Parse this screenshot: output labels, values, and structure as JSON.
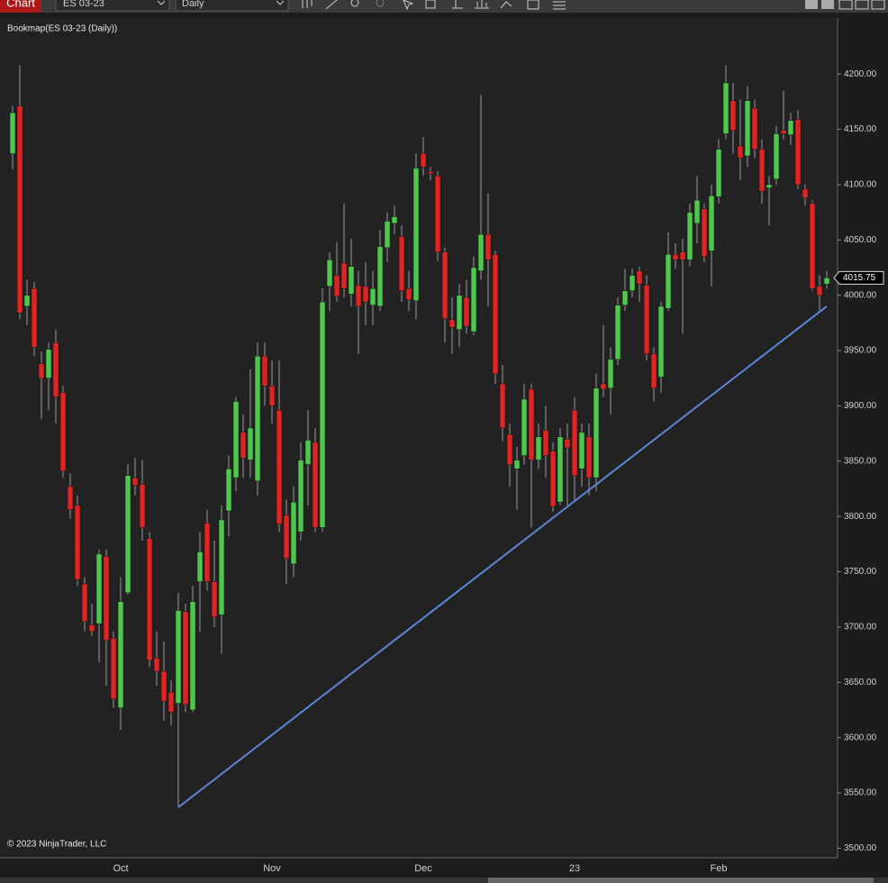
{
  "toolbar": {
    "tab": "Chart",
    "instrument": "ES 03-23",
    "interval": "Daily"
  },
  "chart_data": {
    "type": "candlestick",
    "title": "Bookmap(ES 03-23 (Daily))",
    "copyright": "© 2023 NinjaTrader, LLC",
    "up_color": "#4cc84c",
    "down_color": "#e02424",
    "categories": [
      null,
      null,
      null,
      null,
      null,
      null,
      null,
      null,
      null,
      null,
      null,
      null,
      null,
      null,
      null,
      "Oct",
      null,
      null,
      null,
      null,
      null,
      null,
      null,
      null,
      null,
      null,
      null,
      null,
      null,
      null,
      null,
      null,
      null,
      null,
      null,
      null,
      "Nov",
      null,
      null,
      null,
      null,
      null,
      null,
      null,
      null,
      null,
      null,
      null,
      null,
      null,
      null,
      null,
      null,
      null,
      null,
      null,
      null,
      "Dec",
      null,
      null,
      null,
      null,
      null,
      null,
      null,
      null,
      null,
      null,
      null,
      null,
      null,
      null,
      null,
      null,
      null,
      null,
      null,
      null,
      "23",
      null,
      null,
      null,
      null,
      null,
      null,
      null,
      null,
      null,
      null,
      null,
      null,
      null,
      null,
      null,
      null,
      null,
      null,
      null,
      "Feb",
      null,
      null,
      null,
      null,
      null,
      null,
      null,
      null,
      null,
      null,
      null,
      null,
      null,
      null,
      null
    ],
    "open": [
      4128,
      4171,
      3990,
      4006,
      3938,
      3925,
      3957,
      3912,
      3827,
      3810,
      3739,
      3702,
      3703,
      3764,
      3690,
      3627,
      3731,
      3835,
      3829,
      3780,
      3672,
      3660,
      3641,
      3631,
      3714,
      3625,
      3741,
      3794,
      3741,
      3711,
      3805,
      3835,
      3876,
      3851,
      3832,
      3945,
      3918,
      3896,
      3801,
      3757,
      3786,
      3847,
      3867,
      3790,
      4008,
      4018,
      4029,
      4001,
      4009,
      4008,
      3991,
      3990,
      4043,
      4065,
      4053,
      4006,
      3995,
      4128,
      4112,
      4108,
      4039,
      3978,
      3969,
      3998,
      3967,
      4022,
      4055,
      4037,
      3920,
      3874,
      3843,
      3855,
      3915,
      3851,
      3878,
      3859,
      3813,
      3870,
      3896,
      3843,
      3872,
      3835,
      3920,
      3916,
      3942,
      3991,
      4004,
      4022,
      4009,
      3947,
      3926,
      3988,
      4037,
      4039,
      4032,
      4065,
      4078,
      4040,
      4089,
      4146,
      4176,
      4135,
      4126,
      4169,
      4132,
      4097,
      4105,
      4149,
      4145,
      4159,
      4096,
      4083,
      4008,
      4010
    ],
    "high": [
      4171,
      4208,
      4014,
      4012,
      3949,
      3957,
      3969,
      3918,
      3839,
      3819,
      3745,
      3721,
      3770,
      3770,
      3696,
      3745,
      3847,
      3853,
      3851,
      3786,
      3696,
      3687,
      3652,
      3731,
      3721,
      3737,
      3786,
      3806,
      3778,
      3810,
      3855,
      3908,
      3892,
      3933,
      3957,
      3957,
      3941,
      3941,
      3815,
      3827,
      3867,
      3896,
      3880,
      4006,
      4039,
      4048,
      4083,
      4051,
      4022,
      4030,
      4022,
      4059,
      4075,
      4081,
      4063,
      4022,
      4128,
      4143,
      4116,
      4112,
      4043,
      3998,
      4010,
      4014,
      4035,
      4181,
      4092,
      4040,
      3937,
      3884,
      3863,
      3920,
      3920,
      3884,
      3900,
      3867,
      3880,
      3884,
      3908,
      3884,
      3884,
      3929,
      3973,
      3953,
      3998,
      4024,
      4024,
      4026,
      4018,
      3953,
      3994,
      4057,
      4047,
      4051,
      4083,
      4108,
      4083,
      4100,
      4141,
      4208,
      4192,
      4177,
      4189,
      4177,
      4141,
      4108,
      4153,
      4185,
      4165,
      4167,
      4100,
      4086,
      4018,
      4022
    ],
    "low": [
      4114,
      3978,
      3973,
      3945,
      3888,
      3896,
      3884,
      3835,
      3798,
      3737,
      3696,
      3692,
      3668,
      3647,
      3627,
      3607,
      3729,
      3819,
      3778,
      3664,
      3647,
      3615,
      3611,
      3537,
      3623,
      3623,
      3696,
      3733,
      3700,
      3676,
      3782,
      3823,
      3835,
      3835,
      3819,
      3900,
      3884,
      3786,
      3739,
      3745,
      3778,
      3810,
      3786,
      3786,
      3986,
      3994,
      3998,
      3990,
      3947,
      3973,
      3973,
      3986,
      4030,
      4055,
      3994,
      3986,
      3978,
      4108,
      4104,
      4031,
      3957,
      3947,
      3953,
      3965,
      3964,
      4014,
      3990,
      3920,
      3868,
      3827,
      3806,
      3847,
      3790,
      3843,
      3835,
      3804,
      3810,
      3810,
      3815,
      3827,
      3819,
      3823,
      3908,
      3892,
      3937,
      3986,
      3998,
      3994,
      3941,
      3904,
      3912,
      3986,
      4024,
      3965,
      4026,
      4047,
      4030,
      4008,
      4083,
      4141,
      4128,
      4104,
      4116,
      4124,
      4083,
      4063,
      4100,
      4141,
      4136,
      4096,
      4081,
      4004,
      3986,
      4006
    ],
    "close": [
      4165,
      3984,
      4000,
      3953,
      3925,
      3951,
      3908,
      3841,
      3806,
      3743,
      3705,
      3696,
      3766,
      3688,
      3635,
      3723,
      3837,
      3828,
      3790,
      3670,
      3660,
      3633,
      3623,
      3715,
      3630,
      3723,
      3768,
      3741,
      3709,
      3797,
      3843,
      3904,
      3853,
      3880,
      3945,
      3918,
      3900,
      3793,
      3762,
      3813,
      3851,
      3869,
      3790,
      3994,
      4032,
      3999,
      4006,
      4026,
      3990,
      3994,
      4006,
      4044,
      4067,
      4071,
      4004,
      3996,
      4115,
      4116,
      4110,
      4039,
      3979,
      3971,
      4000,
      3972,
      4025,
      4055,
      4032,
      3929,
      3880,
      3847,
      3851,
      3906,
      3851,
      3872,
      3855,
      3809,
      3872,
      3862,
      3837,
      3876,
      3835,
      3916,
      3915,
      3942,
      3991,
      4004,
      4018,
      4010,
      3947,
      3916,
      3990,
      4037,
      4032,
      4032,
      4075,
      4086,
      4035,
      4090,
      4132,
      4192,
      4149,
      4124,
      4176,
      4132,
      4094,
      4100,
      4146,
      4146,
      4158,
      4100,
      4088,
      4006,
      4000,
      4015.75
    ],
    "ylim": [
      3493,
      4249
    ],
    "yticks": [
      {
        "value": 3500,
        "label": "3500.00"
      },
      {
        "value": 3550,
        "label": "3550.00"
      },
      {
        "value": 3600,
        "label": "3600.00"
      },
      {
        "value": 3650,
        "label": "3650.00"
      },
      {
        "value": 3700,
        "label": "3700.00"
      },
      {
        "value": 3750,
        "label": "3750.00"
      },
      {
        "value": 3800,
        "label": "3800.00"
      },
      {
        "value": 3850,
        "label": "3850.00"
      },
      {
        "value": 3900,
        "label": "3900.00"
      },
      {
        "value": 3950,
        "label": "3950.00"
      },
      {
        "value": 4000,
        "label": "4000.00"
      },
      {
        "value": 4050,
        "label": "4050.00"
      },
      {
        "value": 4100,
        "label": "4100.00"
      },
      {
        "value": 4150,
        "label": "4150.00"
      },
      {
        "value": 4200,
        "label": "4200.00"
      }
    ],
    "trendline": {
      "start": [
        23,
        3537
      ],
      "end": [
        113,
        3990
      ],
      "color": "#5b87d8"
    }
  }
}
